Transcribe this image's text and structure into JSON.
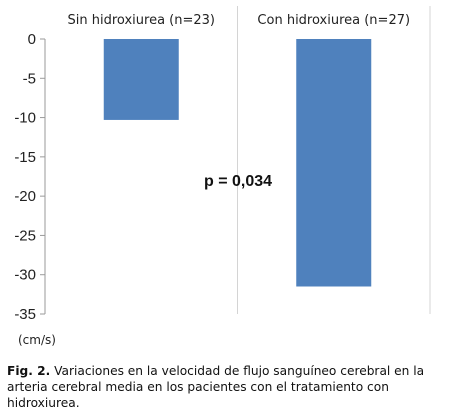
{
  "chart_data": {
    "type": "bar",
    "categories": [
      "Sin hidroxiurea (n=23)",
      "Con hidroxiurea (n=27)"
    ],
    "values": [
      -10.3,
      -31.5
    ],
    "ylim": [
      -35,
      0
    ],
    "yticks": [
      0,
      -5,
      -10,
      -15,
      -20,
      -25,
      -30,
      -35
    ],
    "ylabel": "(cm/s)",
    "annotation": "p = 0,034",
    "bar_color": "#4f81bd",
    "grid": "vertical separators"
  },
  "caption": {
    "label": "Fig. 2.",
    "text": " Variaciones en la velocidad de flujo sanguíneo cerebral en la arteria cerebral media en los pacientes con el tratamiento con hidroxiurea."
  }
}
